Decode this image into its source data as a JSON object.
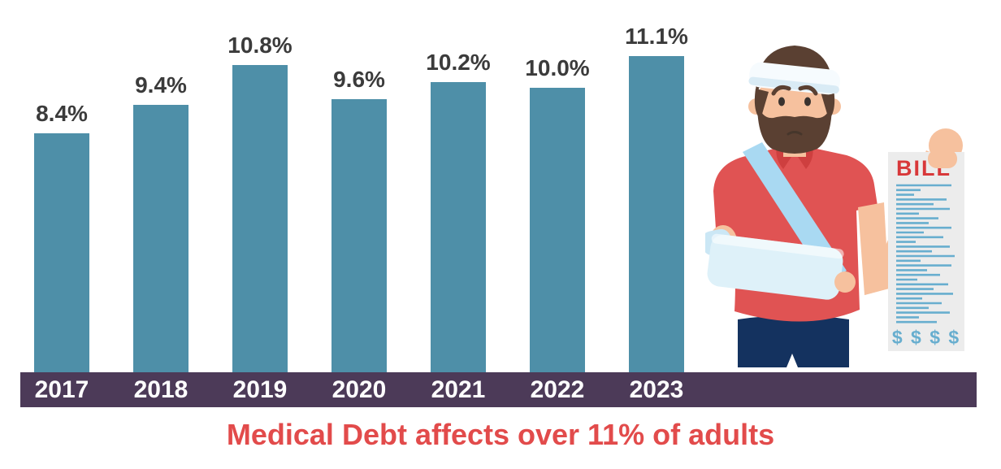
{
  "chart_data": {
    "type": "bar",
    "title": "Medical Debt affects over 11% of adults",
    "categories": [
      "2017",
      "2018",
      "2019",
      "2020",
      "2021",
      "2022",
      "2023"
    ],
    "values": [
      8.4,
      9.4,
      10.8,
      9.6,
      10.2,
      10.0,
      11.1
    ],
    "value_labels": [
      "8.4%",
      "9.4%",
      "10.8%",
      "9.6%",
      "10.2%",
      "10.0%",
      "11.1%"
    ],
    "unit": "%",
    "ylim": [
      0,
      11.1
    ],
    "grid": false,
    "legend": "none",
    "bar_color": "#4E8FA8",
    "value_label_color": "#3B3B3B",
    "axis_band_color": "#4C3A58",
    "category_label_color": "#FFFFFF"
  },
  "caption": {
    "text": "Medical Debt affects over 11% of adults",
    "color": "#E24B4B"
  },
  "illustration": {
    "name": "injured man with head bandage and arm sling holding a medical bill",
    "bill": {
      "title": "BILL",
      "title_color": "#D8383A",
      "footer": "$ $ $ $",
      "line_color": "#68AECF",
      "paper_color": "#ECECEC"
    }
  }
}
